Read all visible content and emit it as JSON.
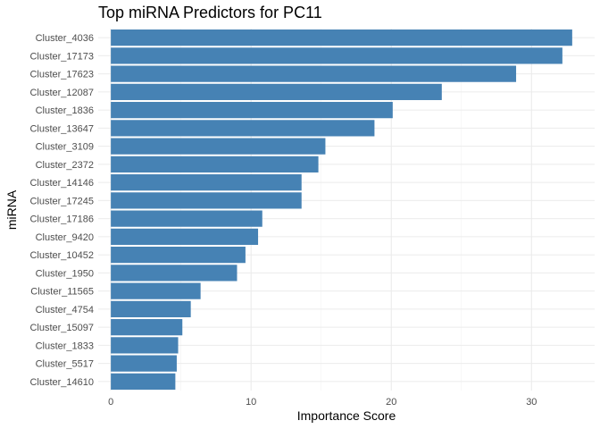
{
  "chart_data": {
    "type": "bar",
    "orientation": "horizontal",
    "title": "Top miRNA Predictors for PC11",
    "xlabel": "Importance Score",
    "ylabel": "miRNA",
    "categories": [
      "Cluster_4036",
      "Cluster_17173",
      "Cluster_17623",
      "Cluster_12087",
      "Cluster_1836",
      "Cluster_13647",
      "Cluster_3109",
      "Cluster_2372",
      "Cluster_14146",
      "Cluster_17245",
      "Cluster_17186",
      "Cluster_9420",
      "Cluster_10452",
      "Cluster_1950",
      "Cluster_11565",
      "Cluster_4754",
      "Cluster_15097",
      "Cluster_1833",
      "Cluster_5517",
      "Cluster_14610"
    ],
    "values": [
      32.9,
      32.2,
      28.9,
      23.6,
      20.1,
      18.8,
      15.3,
      14.8,
      13.6,
      13.6,
      10.8,
      10.5,
      9.6,
      9.0,
      6.4,
      5.7,
      5.1,
      4.8,
      4.7,
      4.6
    ],
    "xticks": [
      0,
      10,
      20,
      30
    ],
    "xlim": [
      -0.9,
      34.5
    ],
    "bar_color": "#4682B4",
    "grid": true
  }
}
